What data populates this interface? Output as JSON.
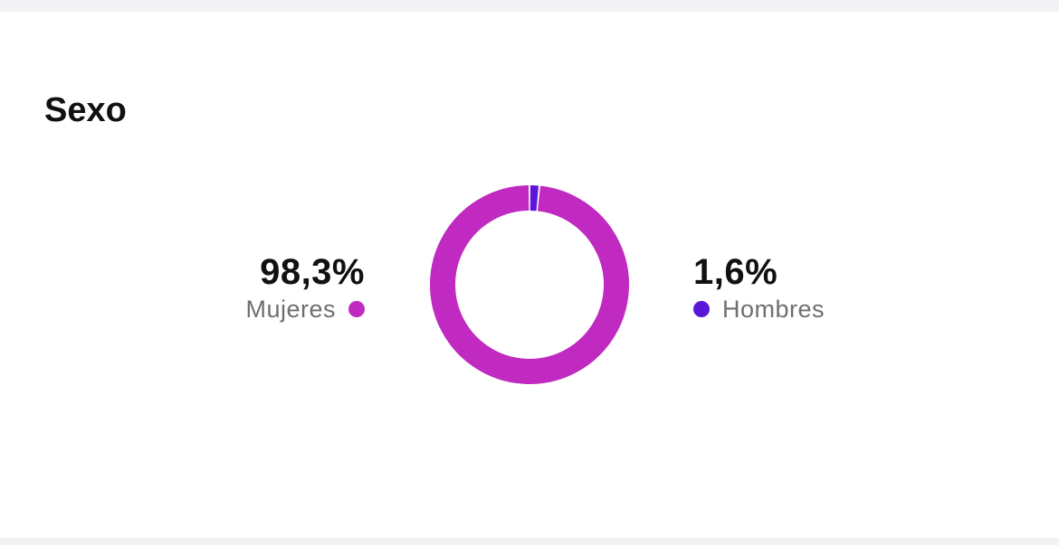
{
  "section": {
    "title": "Sexo"
  },
  "stats": {
    "left": {
      "value": "98,3%",
      "label": "Mujeres"
    },
    "right": {
      "value": "1,6%",
      "label": "Hombres"
    }
  },
  "colors": {
    "mujeres": "#c02ac1",
    "hombres": "#5b17d9",
    "background": "#ffffff",
    "page_background": "#f2f2f4"
  },
  "chart_data": {
    "type": "pie",
    "variant": "donut",
    "title": "Sexo",
    "categories": [
      "Mujeres",
      "Hombres"
    ],
    "values": [
      98.3,
      1.6
    ],
    "unit": "%",
    "legend": "beside-values"
  }
}
